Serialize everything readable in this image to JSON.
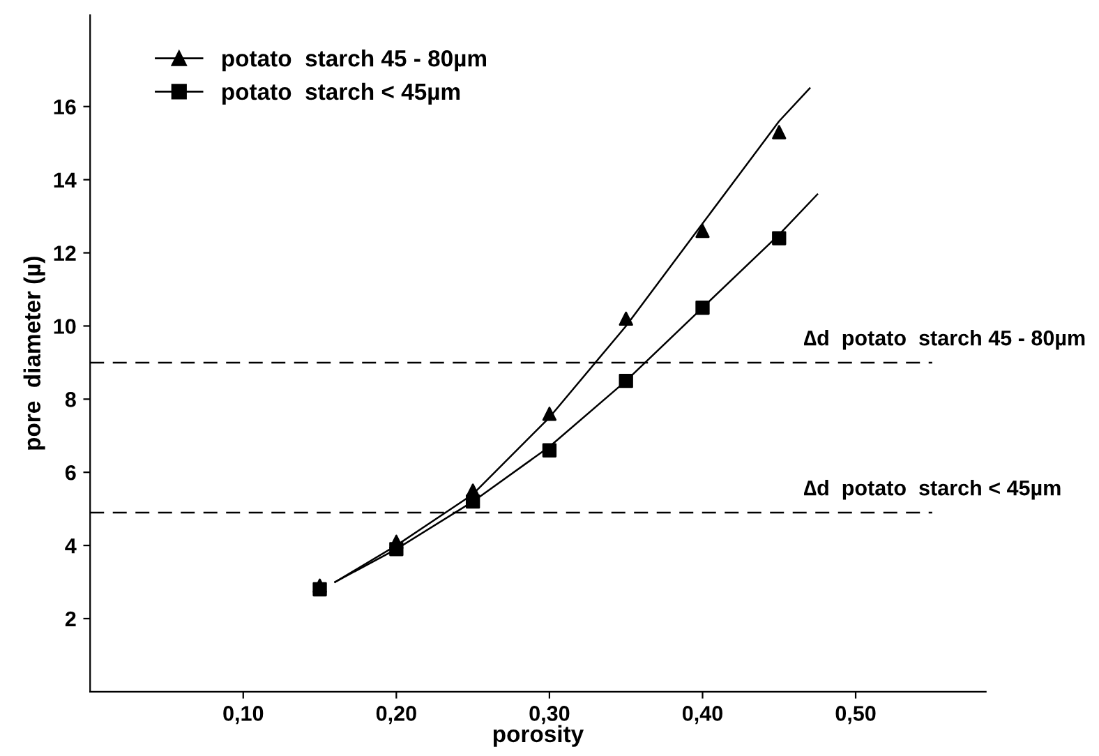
{
  "chart_data": {
    "type": "scatter",
    "xlabel": "porosity",
    "ylabel": "pore  diameter (µ)",
    "x": [
      0.15,
      0.2,
      0.25,
      0.3,
      0.35,
      0.4,
      0.45
    ],
    "series": [
      {
        "name": "potato  starch 45 - 80µm",
        "color": "#000000",
        "marker": "triangle",
        "values": [
          2.9,
          4.1,
          5.5,
          7.6,
          10.2,
          12.6,
          15.3
        ]
      },
      {
        "name": "potato  starch < 45µm",
        "color": "#000000",
        "marker": "square",
        "values": [
          2.8,
          3.9,
          5.2,
          6.6,
          8.5,
          10.5,
          12.4
        ]
      },
      {
        "type": "line",
        "color": "#000000",
        "x": [
          0.16,
          0.2,
          0.25,
          0.3,
          0.35,
          0.4,
          0.45,
          0.47
        ],
        "values": [
          3.0,
          4.0,
          5.4,
          7.5,
          10.0,
          12.8,
          15.6,
          16.5
        ]
      },
      {
        "type": "line",
        "color": "#000000",
        "x": [
          0.16,
          0.2,
          0.25,
          0.3,
          0.35,
          0.4,
          0.45,
          0.475
        ],
        "values": [
          3.0,
          3.9,
          5.2,
          6.7,
          8.5,
          10.5,
          12.5,
          13.6
        ]
      }
    ],
    "ref_lines": [
      {
        "axis": "y",
        "value": 9,
        "label": "∆d  potato  starch 45 - 80µm",
        "color": "#000000",
        "line_style": "dashed"
      },
      {
        "axis": "y",
        "value": 4.9,
        "label": "∆d  potato  starch < 45µm",
        "color": "#000000",
        "line_style": "dashed"
      }
    ],
    "xlim": [
      0,
      0.585
    ],
    "ylim": [
      0,
      18.5
    ],
    "xticks": [
      {
        "value": 0.1,
        "label": "0,10"
      },
      {
        "value": 0.2,
        "label": "0,20"
      },
      {
        "value": 0.3,
        "label": "0,30"
      },
      {
        "value": 0.4,
        "label": "0,40"
      },
      {
        "value": 0.5,
        "label": "0,50"
      }
    ],
    "yticks": [
      2,
      4,
      6,
      8,
      10,
      12,
      14,
      16
    ],
    "grid": false,
    "legend": "top left"
  }
}
